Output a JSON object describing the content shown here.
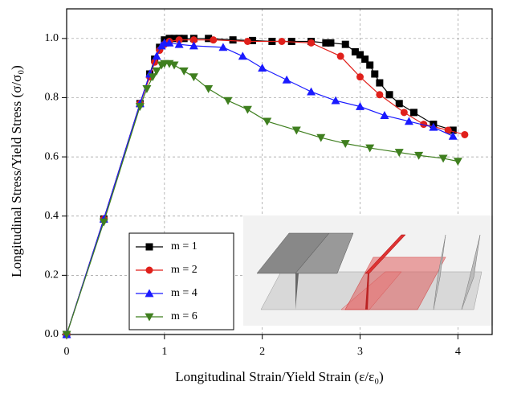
{
  "chart_data": {
    "type": "line",
    "xlabel": "Longitudinal Strain/Yield Strain (ε/ε₀)",
    "ylabel": "Longitudinal Stress/Yield Stress (σ/σ₀)",
    "xlim": [
      0,
      4.35
    ],
    "ylim": [
      0,
      1.1
    ],
    "xticks": [
      0,
      1,
      2,
      3,
      4
    ],
    "yticks": [
      {
        "value": 0,
        "label": "0.0"
      },
      0.2,
      0.4,
      0.6,
      0.8,
      {
        "value": 1,
        "label": "1.0"
      }
    ],
    "grid": true,
    "legend": "lower left",
    "series": [
      {
        "name": "m = 1",
        "color": "#000000",
        "marker": "square",
        "x": [
          0,
          0.38,
          0.75,
          0.85,
          0.9,
          0.95,
          1.0,
          1.05,
          1.1,
          1.15,
          1.2,
          1.3,
          1.45,
          1.7,
          1.9,
          2.1,
          2.3,
          2.5,
          2.65,
          2.7,
          2.85,
          2.95,
          3.0,
          3.05,
          3.1,
          3.15,
          3.2,
          3.3,
          3.4,
          3.55,
          3.75,
          3.95
        ],
        "values": [
          0,
          0.39,
          0.78,
          0.88,
          0.93,
          0.97,
          0.995,
          1.0,
          1.0,
          1.0,
          1.0,
          1.0,
          1.0,
          0.995,
          0.993,
          0.99,
          0.99,
          0.99,
          0.985,
          0.985,
          0.98,
          0.955,
          0.945,
          0.93,
          0.91,
          0.88,
          0.85,
          0.81,
          0.78,
          0.75,
          0.71,
          0.69
        ]
      },
      {
        "name": "m = 2",
        "color": "#e0201b",
        "marker": "circle",
        "x": [
          0,
          0.38,
          0.75,
          0.85,
          0.9,
          0.95,
          1.0,
          1.05,
          1.15,
          1.3,
          1.5,
          1.85,
          2.2,
          2.5,
          2.8,
          3.0,
          3.2,
          3.45,
          3.65,
          3.9,
          4.07
        ],
        "values": [
          0,
          0.39,
          0.78,
          0.87,
          0.92,
          0.96,
          0.98,
          0.99,
          0.995,
          0.995,
          0.995,
          0.99,
          0.99,
          0.985,
          0.94,
          0.87,
          0.81,
          0.75,
          0.71,
          0.69,
          0.675
        ]
      },
      {
        "name": "m = 4",
        "color": "#1a1aff",
        "marker": "triangle-up",
        "x": [
          0,
          0.38,
          0.75,
          0.85,
          0.92,
          0.97,
          1.0,
          1.05,
          1.15,
          1.3,
          1.6,
          1.8,
          2.0,
          2.25,
          2.5,
          2.75,
          3.0,
          3.25,
          3.5,
          3.75,
          3.95
        ],
        "values": [
          0,
          0.39,
          0.78,
          0.88,
          0.94,
          0.975,
          0.985,
          0.985,
          0.98,
          0.975,
          0.97,
          0.94,
          0.9,
          0.86,
          0.82,
          0.79,
          0.77,
          0.74,
          0.72,
          0.7,
          0.67
        ]
      },
      {
        "name": "m = 6",
        "color": "#3f7f1f",
        "marker": "triangle-down",
        "x": [
          0,
          0.38,
          0.75,
          0.82,
          0.88,
          0.92,
          0.97,
          1.0,
          1.05,
          1.1,
          1.2,
          1.3,
          1.45,
          1.65,
          1.85,
          2.05,
          2.35,
          2.6,
          2.85,
          3.1,
          3.4,
          3.6,
          3.85,
          4.0
        ],
        "values": [
          0,
          0.38,
          0.77,
          0.83,
          0.87,
          0.89,
          0.91,
          0.915,
          0.915,
          0.91,
          0.89,
          0.87,
          0.83,
          0.79,
          0.76,
          0.72,
          0.69,
          0.665,
          0.645,
          0.63,
          0.615,
          0.605,
          0.595,
          0.585
        ]
      }
    ]
  }
}
